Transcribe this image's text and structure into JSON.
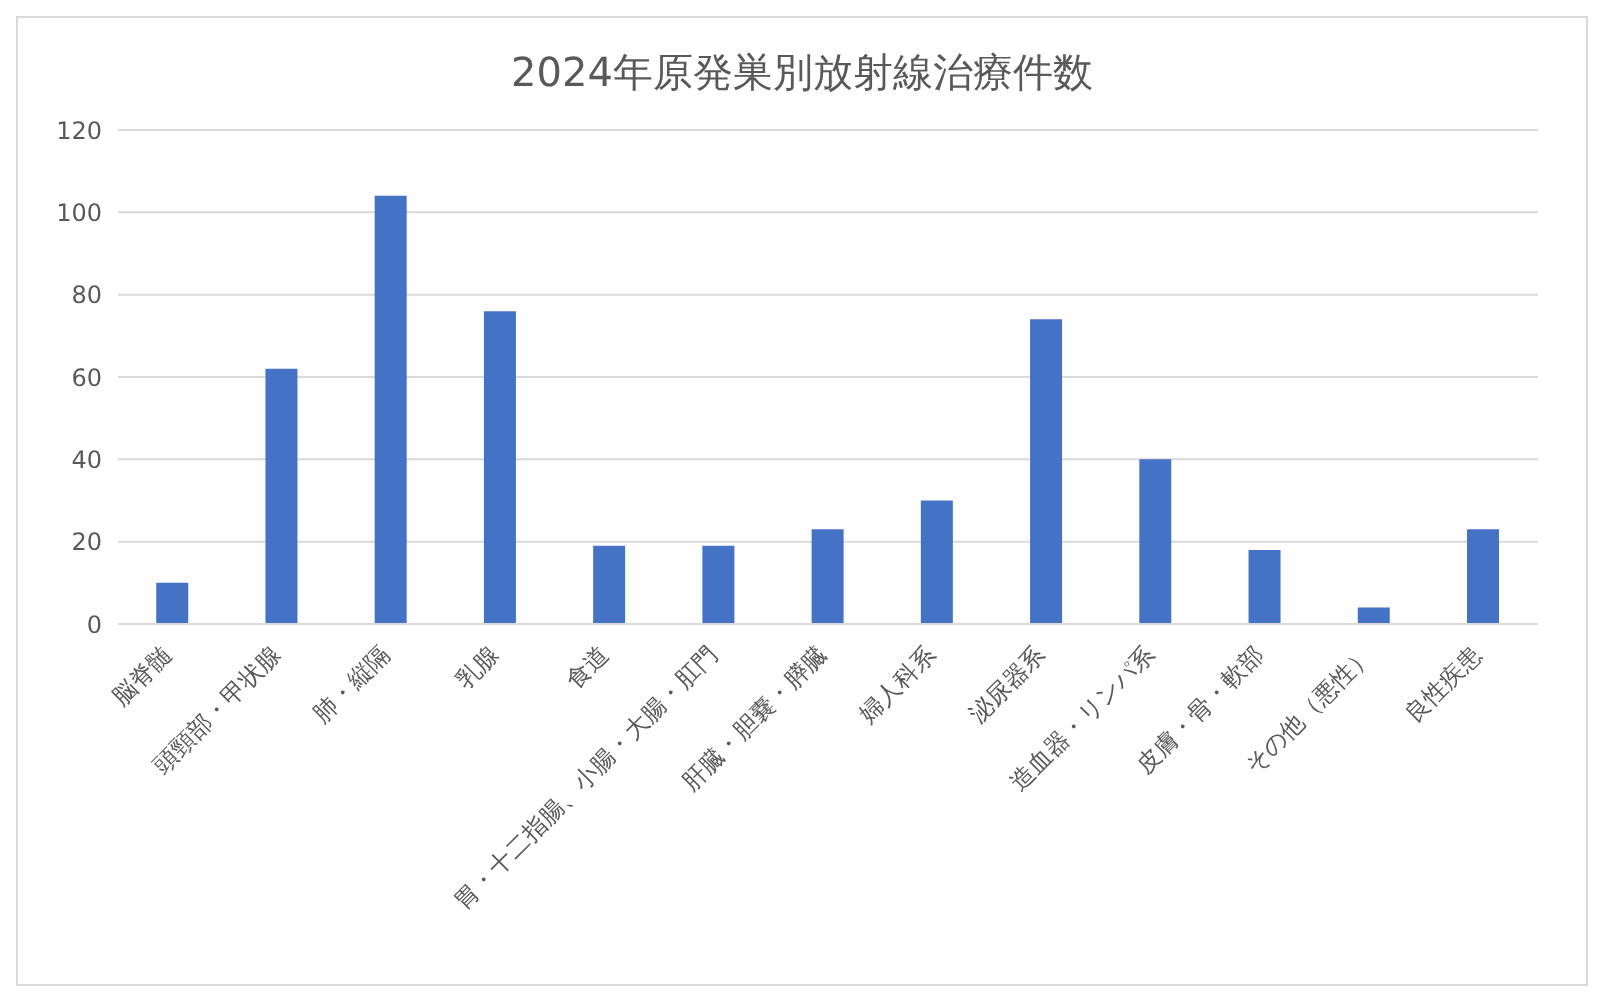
{
  "chart_data": {
    "type": "bar",
    "title": "2024年原発巣別放射線治療件数",
    "categories": [
      "脳脊髄",
      "頭頸部・甲状腺",
      "肺・縦隔",
      "乳腺",
      "食道",
      "胃・十二指腸、小腸・大腸・肛門",
      "肝臓・胆嚢・膵臓",
      "婦人科系",
      "泌尿器系",
      "造血器・リンパ系",
      "皮膚・骨・軟部",
      "その他（悪性）",
      "良性疾患"
    ],
    "values": [
      10,
      62,
      104,
      76,
      19,
      19,
      23,
      30,
      74,
      40,
      18,
      4,
      23
    ],
    "color": "#4472c4",
    "ylim": [
      0,
      120
    ],
    "yticks": [
      0,
      20,
      40,
      60,
      80,
      100,
      120
    ],
    "grid": "y"
  }
}
